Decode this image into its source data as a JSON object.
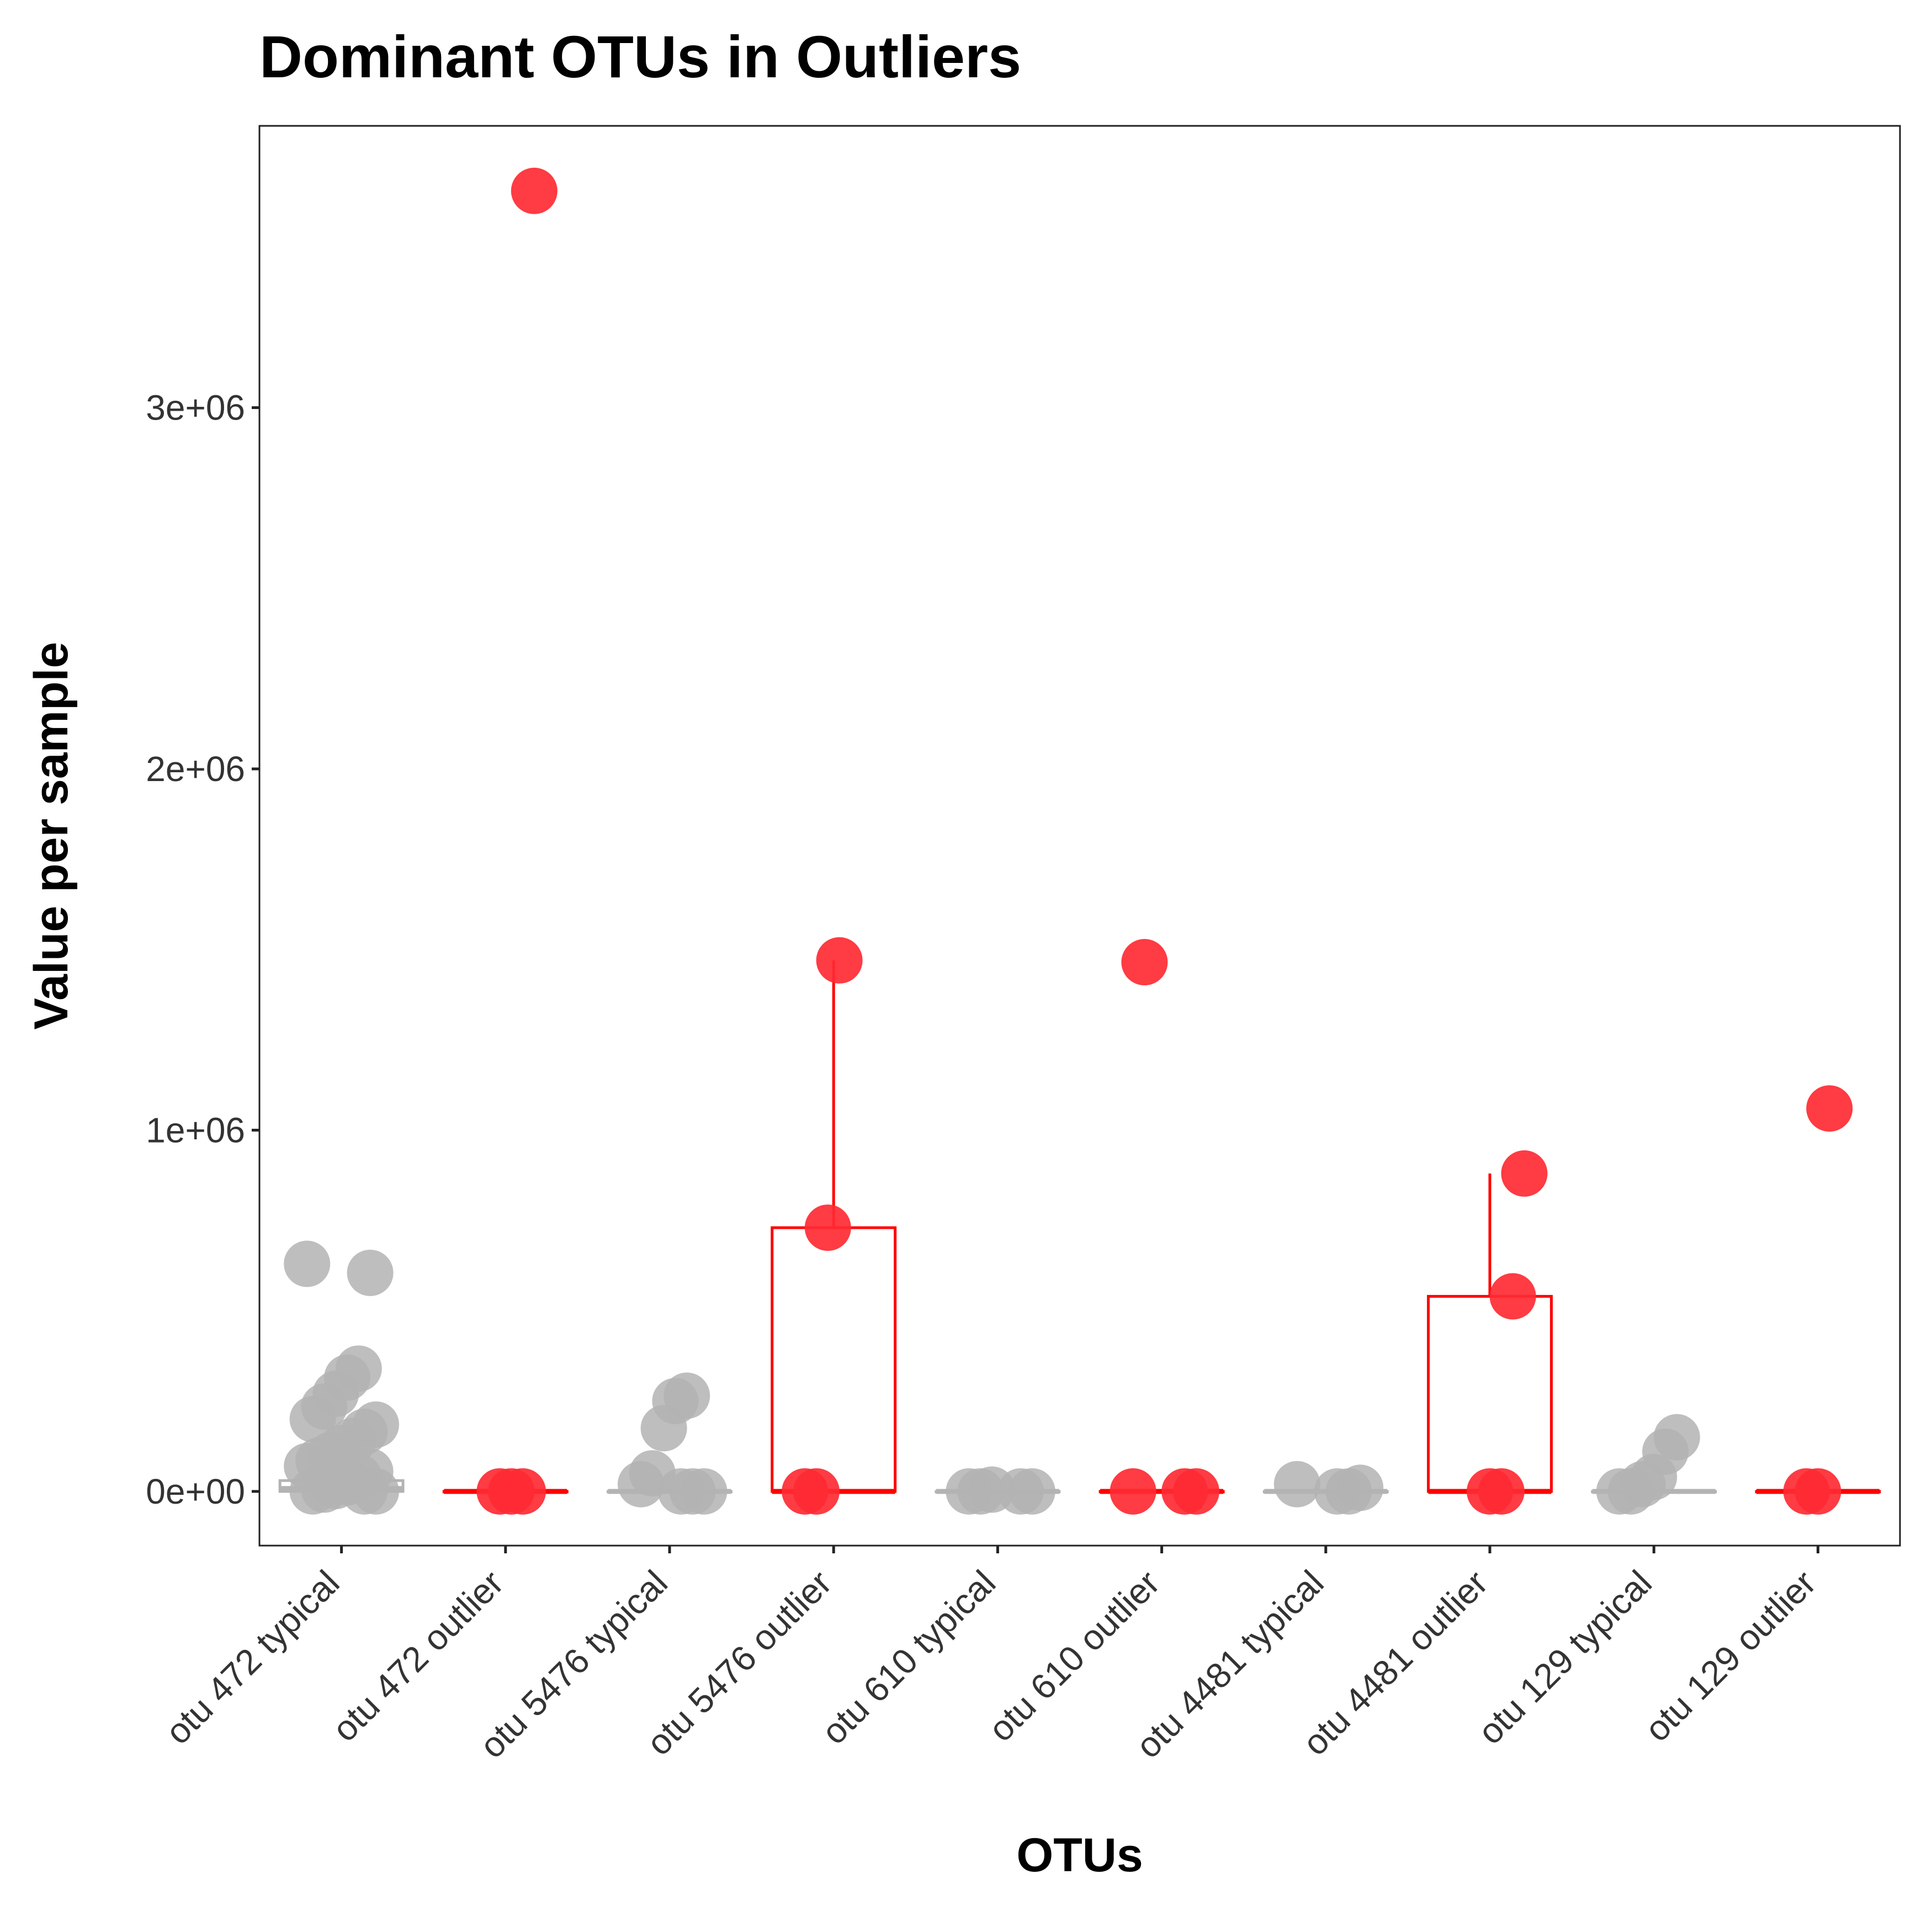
{
  "chart_data": {
    "type": "box+jitter",
    "title": "Dominant OTUs in Outliers",
    "xlabel": "OTUs",
    "ylabel": "Value per sample",
    "ylim": [
      -150000,
      3780000
    ],
    "yticks": [
      0,
      1000000,
      2000000,
      3000000
    ],
    "ytick_labels": [
      "0e+00",
      "1e+06",
      "2e+06",
      "3e+06"
    ],
    "grid": false,
    "legend": "none",
    "colors": {
      "typical": "#b3b3b3",
      "outlier": "#ff0000",
      "outlier_point": "#ff2a33"
    },
    "categories": [
      {
        "label": "otu 472 typical",
        "group": "typical",
        "box": {
          "q1": 0,
          "median": 8000,
          "q3": 30000,
          "whisker_low": 0,
          "whisker_high": 30000
        },
        "points": [
          630000,
          605000,
          340000,
          315000,
          270000,
          235000,
          200000,
          185000,
          165000,
          140000,
          120000,
          100000,
          85000,
          70000,
          55000,
          40000,
          25000,
          15000,
          5000,
          0,
          0,
          0
        ]
      },
      {
        "label": "otu 472 outlier",
        "group": "outlier",
        "box": {
          "q1": 0,
          "median": 0,
          "q3": 0,
          "whisker_low": 0,
          "whisker_high": 0
        },
        "points": [
          3600000,
          0,
          0,
          0
        ]
      },
      {
        "label": "otu 5476 typical",
        "group": "typical",
        "box": {
          "q1": 0,
          "median": 0,
          "q3": 0,
          "whisker_low": 0,
          "whisker_high": 0
        },
        "points": [
          265000,
          250000,
          175000,
          50000,
          20000,
          0,
          0,
          0
        ]
      },
      {
        "label": "otu 5476 outlier",
        "group": "outlier",
        "box": {
          "q1": 0,
          "median": 0,
          "q3": 730000,
          "whisker_low": 0,
          "whisker_high": 1470000
        },
        "points": [
          1470000,
          730000,
          0,
          0
        ]
      },
      {
        "label": "otu 610 typical",
        "group": "typical",
        "box": {
          "q1": 0,
          "median": 0,
          "q3": 0,
          "whisker_low": 0,
          "whisker_high": 0
        },
        "points": [
          5000,
          0,
          0,
          0,
          0
        ]
      },
      {
        "label": "otu 610 outlier",
        "group": "outlier",
        "box": {
          "q1": 0,
          "median": 0,
          "q3": 0,
          "whisker_low": 0,
          "whisker_high": 0
        },
        "points": [
          1465000,
          0,
          0,
          0
        ]
      },
      {
        "label": "otu 4481 typical",
        "group": "typical",
        "box": {
          "q1": 0,
          "median": 0,
          "q3": 0,
          "whisker_low": 0,
          "whisker_high": 0
        },
        "points": [
          20000,
          10000,
          0,
          0
        ]
      },
      {
        "label": "otu 4481 outlier",
        "group": "outlier",
        "box": {
          "q1": 0,
          "median": 0,
          "q3": 540000,
          "whisker_low": 0,
          "whisker_high": 880000
        },
        "points": [
          880000,
          540000,
          0,
          0
        ]
      },
      {
        "label": "otu 129 typical",
        "group": "typical",
        "box": {
          "q1": 0,
          "median": 0,
          "q3": 0,
          "whisker_low": 0,
          "whisker_high": 0
        },
        "points": [
          150000,
          110000,
          40000,
          20000,
          0,
          0
        ]
      },
      {
        "label": "otu 129 outlier",
        "group": "outlier",
        "box": {
          "q1": 0,
          "median": 0,
          "q3": 0,
          "whisker_low": 0,
          "whisker_high": 0
        },
        "points": [
          1060000,
          0,
          0
        ]
      }
    ]
  }
}
